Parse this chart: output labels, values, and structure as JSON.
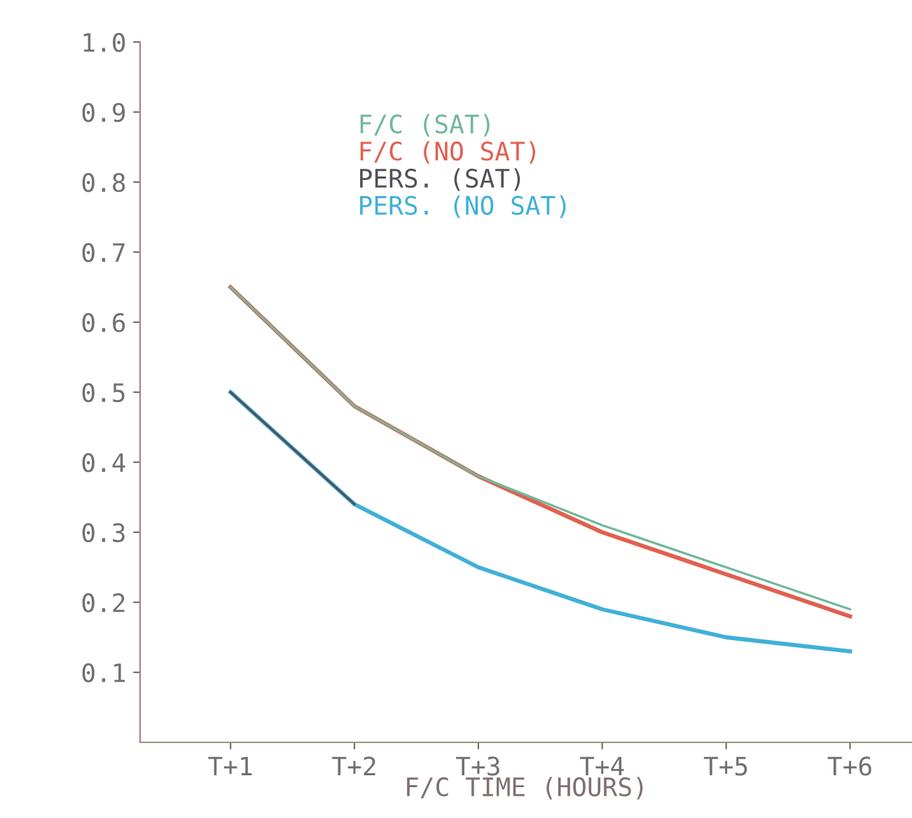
{
  "chart_data": {
    "type": "line",
    "xlabel": "F/C TIME (HOURS)",
    "categories": [
      "T+1",
      "T+2",
      "T+3",
      "T+4",
      "T+5",
      "T+6"
    ],
    "series": [
      {
        "name": "F/C (SAT)",
        "color": "#6fb89a",
        "values": [
          0.65,
          0.48,
          0.38,
          0.31,
          0.25,
          0.19
        ]
      },
      {
        "name": "F/C (NO SAT)",
        "color": "#e06050",
        "values": [
          0.65,
          0.48,
          0.38,
          0.3,
          0.24,
          0.18
        ]
      },
      {
        "name": "PERS. (SAT)",
        "color": "#505058",
        "values": [
          0.5,
          0.34,
          null,
          null,
          null,
          null
        ]
      },
      {
        "name": "PERS. (NO SAT)",
        "color": "#40b0d8",
        "values": [
          0.5,
          0.34,
          0.25,
          0.19,
          0.15,
          0.13
        ]
      }
    ],
    "ylim": [
      0,
      1.0
    ],
    "yticks": [
      0.1,
      0.2,
      0.3,
      0.4,
      0.5,
      0.6,
      0.7,
      0.8,
      0.9,
      {
        "value": 1.0,
        "label": "1.0"
      }
    ],
    "grid": false,
    "legend": "top",
    "marker": "none",
    "line_style": "solid"
  }
}
